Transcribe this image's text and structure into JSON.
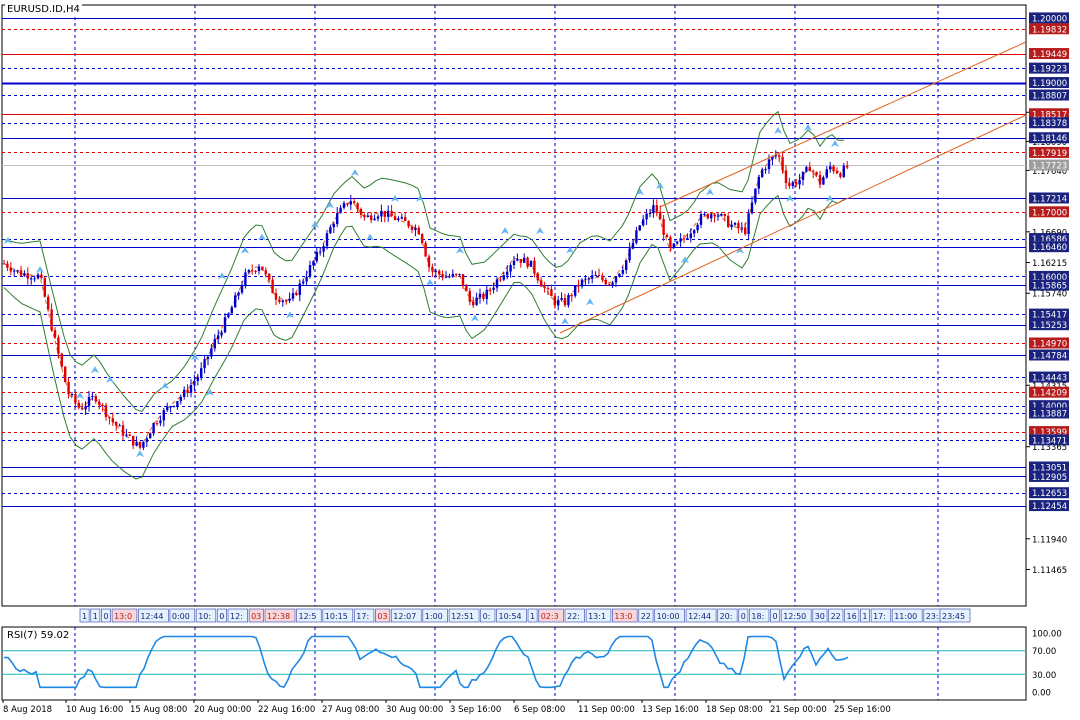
{
  "window": {
    "title": "EURUSD.ID,H4",
    "indicator_title": "RSI(7) 59.02"
  },
  "colors": {
    "grid": "#0000cc",
    "bull": "#0000cc",
    "bear": "#e00000",
    "band": "#2e7d32",
    "channel": "#e0601a",
    "rsi_line": "#1e88e5",
    "rsi_level": "#1ab5b5",
    "fractal": "#64b5f6",
    "label_blue": "#1a237e",
    "label_red": "#b71c1c",
    "label_current": "#9e9e9e"
  },
  "icons": {
    "fractal_marker": "arrow-fractal-icon"
  },
  "price_axis": {
    "range": [
      1.109,
      1.202
    ],
    "levels": [
      {
        "label": "1.20000",
        "price": 1.2,
        "style": "blue-solid"
      },
      {
        "label": "1.19832",
        "price": 1.19832,
        "style": "red-dashed"
      },
      {
        "label": "1.19449",
        "price": 1.19449,
        "style": "red-solid"
      },
      {
        "label": "1.19223",
        "price": 1.19223,
        "style": "blue-dashed"
      },
      {
        "label": "1.19000",
        "price": 1.19,
        "style": "blue-thick"
      },
      {
        "label": "1.18807",
        "price": 1.18807,
        "style": "blue-dashed"
      },
      {
        "label": "1.18517",
        "price": 1.18517,
        "style": "red-solid"
      },
      {
        "label": "1.18378",
        "price": 1.18378,
        "style": "blue-dashed"
      },
      {
        "label": "1.18146",
        "price": 1.18146,
        "style": "blue-solid"
      },
      {
        "label": "1.17919",
        "price": 1.17919,
        "style": "red-dashed"
      },
      {
        "label": "1.17723",
        "price": 1.17723,
        "style": "current"
      },
      {
        "label": "1.17214",
        "price": 1.17214,
        "style": "blue-solid"
      },
      {
        "label": "1.17000",
        "price": 1.17,
        "style": "red-dashed"
      },
      {
        "label": "1.16586",
        "price": 1.16586,
        "style": "blue-dashed"
      },
      {
        "label": "1.16460",
        "price": 1.1646,
        "style": "blue-solid"
      },
      {
        "label": "1.16000",
        "price": 1.16,
        "style": "blue-dashed"
      },
      {
        "label": "1.15865",
        "price": 1.15865,
        "style": "blue-solid"
      },
      {
        "label": "1.15417",
        "price": 1.15417,
        "style": "blue-dashed"
      },
      {
        "label": "1.15253",
        "price": 1.15253,
        "style": "blue-solid"
      },
      {
        "label": "1.14970",
        "price": 1.1497,
        "style": "red-dashed"
      },
      {
        "label": "1.14784",
        "price": 1.14784,
        "style": "blue-solid"
      },
      {
        "label": "1.14443",
        "price": 1.14443,
        "style": "blue-dashed"
      },
      {
        "label": "1.14209",
        "price": 1.14209,
        "style": "red-dashed"
      },
      {
        "label": "1.14000",
        "price": 1.14,
        "style": "blue-dashed"
      },
      {
        "label": "1.13887",
        "price": 1.13887,
        "style": "blue-dashed"
      },
      {
        "label": "1.13599",
        "price": 1.13599,
        "style": "red-dashed"
      },
      {
        "label": "1.13471",
        "price": 1.13471,
        "style": "blue-dashed"
      },
      {
        "label": "1.13051",
        "price": 1.13051,
        "style": "blue-solid"
      },
      {
        "label": "1.12905",
        "price": 1.12905,
        "style": "blue-solid"
      },
      {
        "label": "1.12653",
        "price": 1.12653,
        "style": "blue-dashed"
      },
      {
        "label": "1.12454",
        "price": 1.12454,
        "style": "blue-solid"
      }
    ],
    "ticks": [
      {
        "label": "1.18540",
        "price": 1.1854
      },
      {
        "label": "1.18090",
        "price": 1.1809
      },
      {
        "label": "1.17640",
        "price": 1.1764
      },
      {
        "label": "1.16690",
        "price": 1.1669
      },
      {
        "label": "1.16215",
        "price": 1.16215
      },
      {
        "label": "1.15740",
        "price": 1.1574
      },
      {
        "label": "1.14315",
        "price": 1.14315
      },
      {
        "label": "1.13365",
        "price": 1.13365
      },
      {
        "label": "1.11940",
        "price": 1.1194
      },
      {
        "label": "1.11465",
        "price": 1.11465
      }
    ]
  },
  "time_axis": {
    "labels": [
      "8 Aug 2018",
      "10 Aug 16:00",
      "15 Aug 08:00",
      "20 Aug 00:00",
      "22 Aug 16:00",
      "27 Aug 08:00",
      "30 Aug 00:00",
      "3 Sep 16:00",
      "6 Sep 08:00",
      "11 Sep 00:00",
      "13 Sep 16:00",
      "18 Sep 08:00",
      "21 Sep 00:00",
      "25 Sep 16:00"
    ]
  },
  "session_boxes": [
    "1",
    "1",
    "0",
    "13:0",
    "12:44",
    "0:00",
    "10:",
    "0",
    "12:",
    "03",
    "12:38",
    "12:5",
    "10:15",
    "17:",
    "03",
    "12:07",
    "1:00",
    "12:51",
    "0:",
    "10:54",
    "1",
    "02:3",
    "22:",
    "13:1",
    "13:0",
    "22",
    "10:00",
    "12:44",
    "20:",
    "0",
    "18:",
    "0",
    "12:50",
    "30",
    "22",
    "16",
    "1",
    "17:",
    "11:00",
    "23:30",
    "23:45"
  ],
  "rsi": {
    "period": 7,
    "value": 59.02,
    "levels": [
      {
        "label": "100.00",
        "value": 100
      },
      {
        "label": "70.00",
        "value": 70
      },
      {
        "label": "30.00",
        "value": 30
      },
      {
        "label": "0.00",
        "value": 0
      }
    ]
  }
}
